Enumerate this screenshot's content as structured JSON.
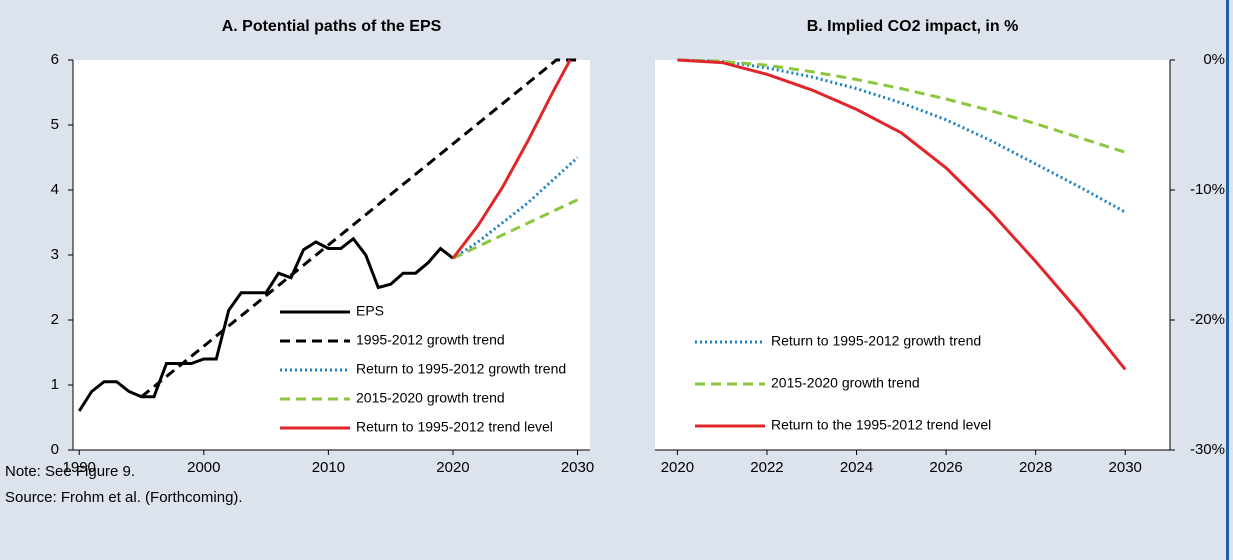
{
  "chart_data": [
    {
      "type": "line",
      "title": "A. Potential paths of the EPS",
      "xlim": [
        1989.5,
        2031
      ],
      "xticks": [
        1990,
        2000,
        2010,
        2020,
        2030
      ],
      "ylim": [
        0,
        6
      ],
      "yticks": [
        0,
        1,
        2,
        3,
        4,
        5,
        6
      ],
      "yaxis_side": "left",
      "legend": "lower right",
      "series": [
        {
          "name": "EPS",
          "color": "#000000",
          "dash": "solid",
          "x": [
            1990,
            1991,
            1992,
            1993,
            1994,
            1995,
            1996,
            1997,
            1998,
            1999,
            2000,
            2001,
            2002,
            2003,
            2004,
            2005,
            2006,
            2007,
            2008,
            2009,
            2010,
            2011,
            2012,
            2013,
            2014,
            2015,
            2016,
            2017,
            2018,
            2019,
            2020
          ],
          "values": [
            0.6,
            0.9,
            1.05,
            1.05,
            0.9,
            0.82,
            0.82,
            1.33,
            1.33,
            1.33,
            1.4,
            1.4,
            2.15,
            2.42,
            2.42,
            2.42,
            2.72,
            2.65,
            3.08,
            3.2,
            3.1,
            3.1,
            3.25,
            3.0,
            2.5,
            2.55,
            2.72,
            2.72,
            2.88,
            3.1,
            2.95
          ]
        },
        {
          "name": "1995-2012 growth trend",
          "color": "#000000",
          "dash": "dashed",
          "x": [
            1995,
            2028.3,
            2030
          ],
          "values": [
            0.82,
            6,
            6
          ]
        },
        {
          "name": "Return to 1995-2012 growth trend",
          "color": "#1a7fc1",
          "dash": "dotted",
          "x": [
            2020,
            2022,
            2024,
            2026,
            2028,
            2030
          ],
          "values": [
            2.95,
            3.2,
            3.5,
            3.8,
            4.15,
            4.5
          ]
        },
        {
          "name": "2015-2020 growth trend",
          "color": "#8cc63f",
          "dash": "dashed",
          "x": [
            2020,
            2022,
            2024,
            2026,
            2028,
            2030
          ],
          "values": [
            2.95,
            3.13,
            3.31,
            3.49,
            3.67,
            3.85
          ]
        },
        {
          "name": "Return to 1995-2012 trend level",
          "color": "#e0262b",
          "dash": "solid",
          "x": [
            2020,
            2022,
            2024,
            2026,
            2028,
            2029.4
          ],
          "values": [
            2.95,
            3.45,
            4.05,
            4.75,
            5.5,
            6
          ]
        }
      ]
    },
    {
      "type": "line",
      "title": "B. Implied CO2 impact, in %",
      "xlim": [
        2019.5,
        2031
      ],
      "xticks": [
        2020,
        2022,
        2024,
        2026,
        2028,
        2030
      ],
      "ylim": [
        -30,
        0
      ],
      "yticks": [
        {
          "value": 0,
          "label": "0%"
        },
        {
          "value": -10,
          "label": "-10%"
        },
        {
          "value": -20,
          "label": "-20%"
        },
        {
          "value": -30,
          "label": "-30%"
        }
      ],
      "yaxis_side": "right",
      "legend": "lower left",
      "series": [
        {
          "name": "Return to 1995-2012 growth trend",
          "color": "#1a7fc1",
          "dash": "dotted",
          "x": [
            2020,
            2021,
            2022,
            2023,
            2024,
            2025,
            2026,
            2027,
            2028,
            2029,
            2030
          ],
          "values": [
            0,
            -0.1,
            -0.6,
            -1.3,
            -2.2,
            -3.3,
            -4.6,
            -6.2,
            -8.0,
            -9.8,
            -11.7
          ]
        },
        {
          "name": "2015-2020 growth trend",
          "color": "#8cc63f",
          "dash": "dashed",
          "x": [
            2020,
            2021,
            2022,
            2023,
            2024,
            2025,
            2026,
            2027,
            2028,
            2029,
            2030
          ],
          "values": [
            0,
            -0.1,
            -0.4,
            -0.9,
            -1.5,
            -2.2,
            -3.0,
            -3.9,
            -4.9,
            -6.0,
            -7.1
          ]
        },
        {
          "name": "Return to the 1995-2012 trend level",
          "color": "#e0262b",
          "dash": "solid",
          "x": [
            2020,
            2021,
            2022,
            2023,
            2024,
            2025,
            2026,
            2027,
            2028,
            2029,
            2030
          ],
          "values": [
            0,
            -0.2,
            -1.1,
            -2.3,
            -3.8,
            -5.6,
            -8.3,
            -11.7,
            -15.5,
            -19.5,
            -23.8
          ]
        }
      ]
    }
  ],
  "note": "Note: See Figure 9.",
  "source": "Source: Frohm et al. (Forthcoming)."
}
